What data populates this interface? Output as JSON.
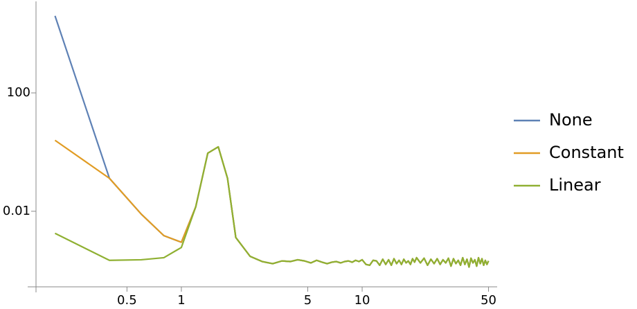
{
  "chart_data": {
    "type": "line",
    "log_x": true,
    "log_y": true,
    "legend": "right",
    "x": [
      0.2,
      0.4,
      0.6,
      0.8,
      1,
      1.2,
      1.4,
      1.6,
      1.8,
      2,
      2.4,
      2.8,
      3.2,
      3.6,
      4,
      4.4,
      4.8,
      5.2,
      5.6,
      6,
      6.4,
      6.8,
      7.2,
      7.6,
      8,
      8.4,
      8.8,
      9.2,
      9.6,
      10,
      10.5,
      11,
      11.5,
      12,
      12.5,
      13,
      13.5,
      14,
      14.5,
      15,
      15.5,
      16,
      16.5,
      17,
      17.5,
      18,
      18.5,
      19,
      19.5,
      20,
      21,
      22,
      23,
      24,
      25,
      26,
      27,
      28,
      29,
      30,
      31,
      32,
      33,
      34,
      35,
      36,
      37,
      38,
      39,
      40,
      41,
      42,
      43,
      44,
      45,
      46,
      47,
      48,
      49,
      50
    ],
    "series": [
      {
        "name": "None",
        "color": "#5e81b5",
        "values": [
          40000,
          0.13,
          0.008,
          0.0015,
          0.0009,
          0.014,
          0.92,
          1.5,
          0.13,
          0.0013,
          0.0003,
          0.0002,
          0.00017,
          0.00021,
          0.0002,
          0.00023,
          0.00021,
          0.00018,
          0.00022,
          0.00019,
          0.00017,
          0.00019,
          0.0002,
          0.00018,
          0.0002,
          0.00021,
          0.00019,
          0.00022,
          0.0002,
          0.00023,
          0.00016,
          0.00015,
          0.00022,
          0.00021,
          0.00015,
          0.00024,
          0.00016,
          0.00023,
          0.00015,
          0.00025,
          0.00017,
          0.00022,
          0.00016,
          0.00024,
          0.00018,
          0.00021,
          0.00016,
          0.00025,
          0.00019,
          0.00027,
          0.00018,
          0.00026,
          0.00015,
          0.00024,
          0.00017,
          0.00025,
          0.00016,
          0.00023,
          0.00018,
          0.00026,
          0.00014,
          0.00025,
          0.00017,
          0.00022,
          0.00015,
          0.00027,
          0.00016,
          0.00024,
          0.00013,
          0.00026,
          0.00018,
          0.00023,
          0.00014,
          0.00027,
          0.00017,
          0.00025,
          0.00015,
          0.00022,
          0.00016,
          0.00021
        ]
      },
      {
        "name": "Constant",
        "color": "#e19c24",
        "values": [
          2.5,
          0.13,
          0.008,
          0.0015,
          0.0009,
          0.014,
          0.92,
          1.5,
          0.13,
          0.0013,
          0.0003,
          0.0002,
          0.00017,
          0.00021,
          0.0002,
          0.00023,
          0.00021,
          0.00018,
          0.00022,
          0.00019,
          0.00017,
          0.00019,
          0.0002,
          0.00018,
          0.0002,
          0.00021,
          0.00019,
          0.00022,
          0.0002,
          0.00023,
          0.00016,
          0.00015,
          0.00022,
          0.00021,
          0.00015,
          0.00024,
          0.00016,
          0.00023,
          0.00015,
          0.00025,
          0.00017,
          0.00022,
          0.00016,
          0.00024,
          0.00018,
          0.00021,
          0.00016,
          0.00025,
          0.00019,
          0.00027,
          0.00018,
          0.00026,
          0.00015,
          0.00024,
          0.00017,
          0.00025,
          0.00016,
          0.00023,
          0.00018,
          0.00026,
          0.00014,
          0.00025,
          0.00017,
          0.00022,
          0.00015,
          0.00027,
          0.00016,
          0.00024,
          0.00013,
          0.00026,
          0.00018,
          0.00023,
          0.00014,
          0.00027,
          0.00017,
          0.00025,
          0.00015,
          0.00022,
          0.00016,
          0.00021
        ]
      },
      {
        "name": "Linear",
        "color": "#8fb032",
        "values": [
          0.0018,
          0.00022,
          0.00023,
          0.00027,
          0.0006,
          0.014,
          0.92,
          1.5,
          0.13,
          0.0013,
          0.0003,
          0.0002,
          0.00017,
          0.00021,
          0.0002,
          0.00023,
          0.00021,
          0.00018,
          0.00022,
          0.00019,
          0.00017,
          0.00019,
          0.0002,
          0.00018,
          0.0002,
          0.00021,
          0.00019,
          0.00022,
          0.0002,
          0.00023,
          0.00016,
          0.00015,
          0.00022,
          0.00021,
          0.00015,
          0.00024,
          0.00016,
          0.00023,
          0.00015,
          0.00025,
          0.00017,
          0.00022,
          0.00016,
          0.00024,
          0.00018,
          0.00021,
          0.00016,
          0.00025,
          0.00019,
          0.00027,
          0.00018,
          0.00026,
          0.00015,
          0.00024,
          0.00017,
          0.00025,
          0.00016,
          0.00023,
          0.00018,
          0.00026,
          0.00014,
          0.00025,
          0.00017,
          0.00022,
          0.00015,
          0.00027,
          0.00016,
          0.00024,
          0.00013,
          0.00026,
          0.00018,
          0.00023,
          0.00014,
          0.00027,
          0.00017,
          0.00025,
          0.00015,
          0.00022,
          0.00016,
          0.00021
        ]
      }
    ],
    "xlim": [
      0.157,
      55.8
    ],
    "ylim": [
      2.8e-05,
      105000
    ],
    "xticks": [
      0.5,
      1,
      5,
      10,
      50
    ],
    "yticks": [
      0.01,
      100
    ]
  }
}
